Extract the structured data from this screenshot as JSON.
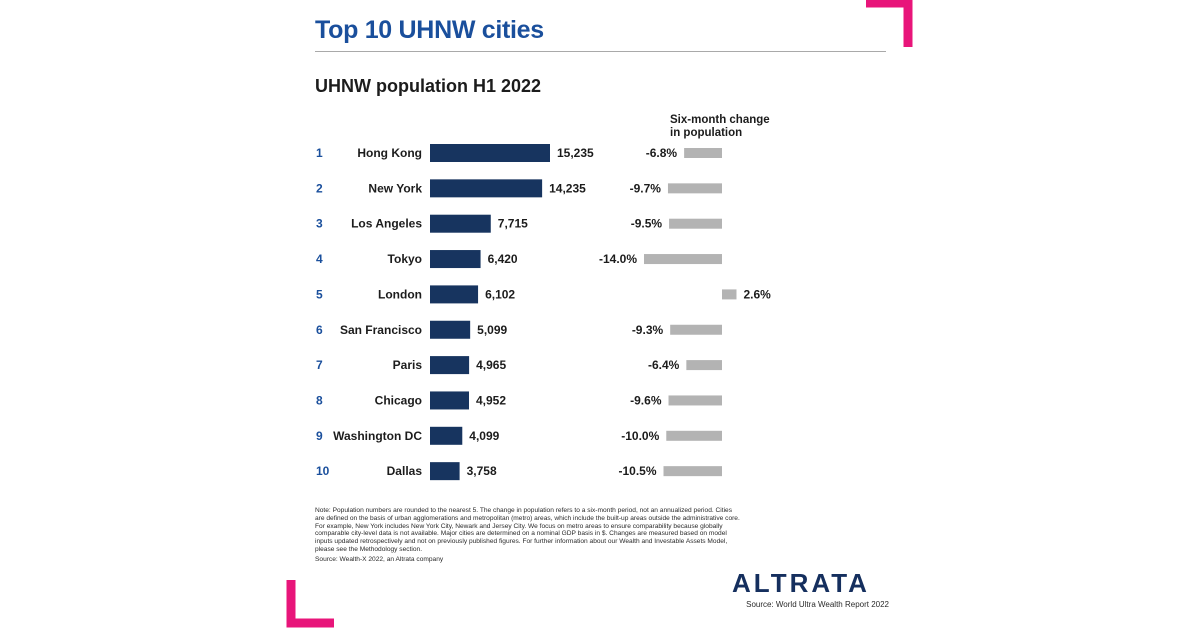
{
  "title": "Top 10 UHNW cities",
  "chart_data": {
    "type": "bar",
    "subtitle": "UHNW population H1 2022",
    "change_header_line1": "Six-month change",
    "change_header_line2": "in population",
    "ranks": [
      "1",
      "2",
      "3",
      "4",
      "5",
      "6",
      "7",
      "8",
      "9",
      "10"
    ],
    "categories": [
      "Hong Kong",
      "New York",
      "Los Angeles",
      "Tokyo",
      "London",
      "San Francisco",
      "Paris",
      "Chicago",
      "Washington DC",
      "Dallas"
    ],
    "series": [
      {
        "values": [
          15235,
          14235,
          7715,
          6420,
          6102,
          5099,
          4965,
          4952,
          4099,
          3758
        ],
        "labels": [
          "15,235",
          "14,235",
          "7,715",
          "6,420",
          "6,102",
          "5,099",
          "4,965",
          "4,952",
          "4,099",
          "3,758"
        ]
      },
      {
        "values": [
          -6.8,
          -9.7,
          -9.5,
          -14.0,
          2.6,
          -9.3,
          -6.4,
          -9.6,
          -10.0,
          -10.5
        ],
        "labels": [
          "-6.8%",
          "-9.7%",
          "-9.5%",
          "-14.0%",
          "2.6%",
          "-9.3%",
          "-6.4%",
          "-9.6%",
          "-10.0%",
          "-10.5%"
        ]
      }
    ],
    "colors": {
      "population": "#17345f",
      "change": "#b3b3b3",
      "rank": "#1a4f9c"
    }
  },
  "note": "Note: Population numbers are rounded to the nearest 5. The change in population refers to a six-month period, not an annualized period. Cities are defined on the basis of urban agglomerations and metropolitan (metro) areas, which include the built-up areas outside the administrative core. For example, New York includes New York City, Newark and Jersey City. We focus on metro areas to ensure comparability because globally comparable city-level data is not available. Major cities are determined on a nominal GDP basis in $. Changes are measured based on model inputs updated retrospectively and not on previously published figures. For further information about our Wealth and Investable Assets Model, please see the Methodology section.",
  "source_small": "Source: Wealth-X 2022, an Altrata company",
  "logo": "ALTRATA",
  "source": "Source: World Ultra Wealth Report 2022",
  "accent_color": "#e8157a"
}
